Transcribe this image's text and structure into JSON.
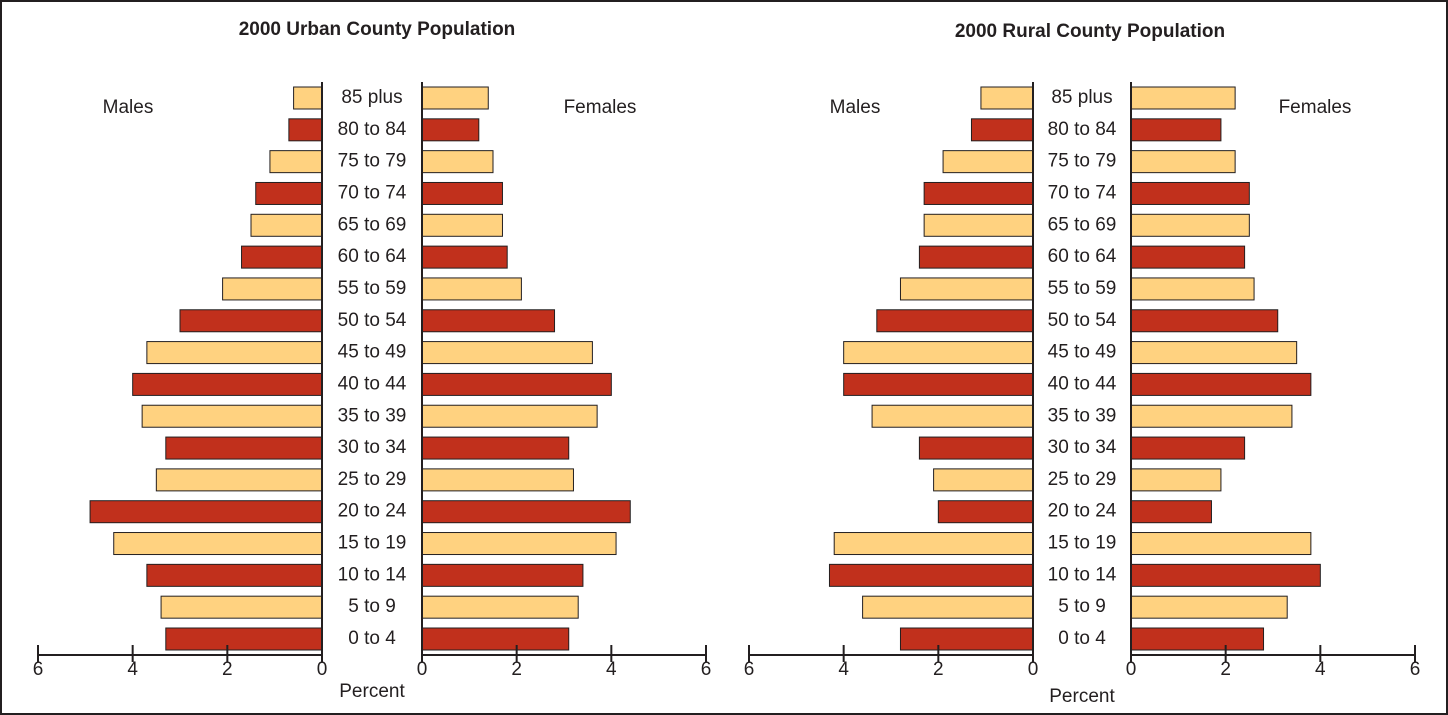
{
  "chart_data": [
    {
      "type": "pyramid",
      "title": "2000 Urban County Population",
      "xlabel": "Percent",
      "categories": [
        "0 to 4",
        "5 to 9",
        "10 to 14",
        "15 to 19",
        "20 to 24",
        "25 to 29",
        "30 to 34",
        "35 to 39",
        "40 to 44",
        "45 to 49",
        "50 to 54",
        "55 to 59",
        "60 to 64",
        "65 to 69",
        "70 to 74",
        "75 to 79",
        "80 to 84",
        "85 plus"
      ],
      "colors": [
        "#c1301c",
        "#ffd280",
        "#c1301c",
        "#ffd280",
        "#c1301c",
        "#ffd280",
        "#c1301c",
        "#ffd280",
        "#c1301c",
        "#ffd280",
        "#c1301c",
        "#ffd280",
        "#c1301c",
        "#ffd280",
        "#c1301c",
        "#ffd280",
        "#c1301c",
        "#ffd280"
      ],
      "series": [
        {
          "name": "Males",
          "values": [
            3.3,
            3.4,
            3.7,
            4.4,
            4.9,
            3.5,
            3.3,
            3.8,
            4.0,
            3.7,
            3.0,
            2.1,
            1.7,
            1.5,
            1.4,
            1.1,
            0.7,
            0.6
          ]
        },
        {
          "name": "Females",
          "values": [
            3.1,
            3.3,
            3.4,
            4.1,
            4.4,
            3.2,
            3.1,
            3.7,
            4.0,
            3.6,
            2.8,
            2.1,
            1.8,
            1.7,
            1.7,
            1.5,
            1.2,
            1.4
          ]
        }
      ],
      "xlim": [
        0,
        6
      ],
      "xticks": [
        0,
        2,
        4,
        6
      ]
    },
    {
      "type": "pyramid",
      "title": "2000 Rural County Population",
      "xlabel": "Percent",
      "categories": [
        "0 to 4",
        "5 to 9",
        "10 to 14",
        "15 to 19",
        "20 to 24",
        "25 to 29",
        "30 to 34",
        "35 to 39",
        "40 to 44",
        "45 to 49",
        "50 to 54",
        "55 to 59",
        "60 to 64",
        "65 to 69",
        "70 to 74",
        "75 to 79",
        "80 to 84",
        "85 plus"
      ],
      "colors": [
        "#c1301c",
        "#ffd280",
        "#c1301c",
        "#ffd280",
        "#c1301c",
        "#ffd280",
        "#c1301c",
        "#ffd280",
        "#c1301c",
        "#ffd280",
        "#c1301c",
        "#ffd280",
        "#c1301c",
        "#ffd280",
        "#c1301c",
        "#ffd280",
        "#c1301c",
        "#ffd280"
      ],
      "series": [
        {
          "name": "Males",
          "values": [
            2.8,
            3.6,
            4.3,
            4.2,
            2.0,
            2.1,
            2.4,
            3.4,
            4.0,
            4.0,
            3.3,
            2.8,
            2.4,
            2.3,
            2.3,
            1.9,
            1.3,
            1.1
          ]
        },
        {
          "name": "Females",
          "values": [
            2.8,
            3.3,
            4.0,
            3.8,
            1.7,
            1.9,
            2.4,
            3.4,
            3.8,
            3.5,
            3.1,
            2.6,
            2.4,
            2.5,
            2.5,
            2.2,
            1.9,
            2.2
          ]
        }
      ],
      "xlim": [
        0,
        6
      ],
      "xticks": [
        0,
        2,
        4,
        6
      ]
    }
  ]
}
